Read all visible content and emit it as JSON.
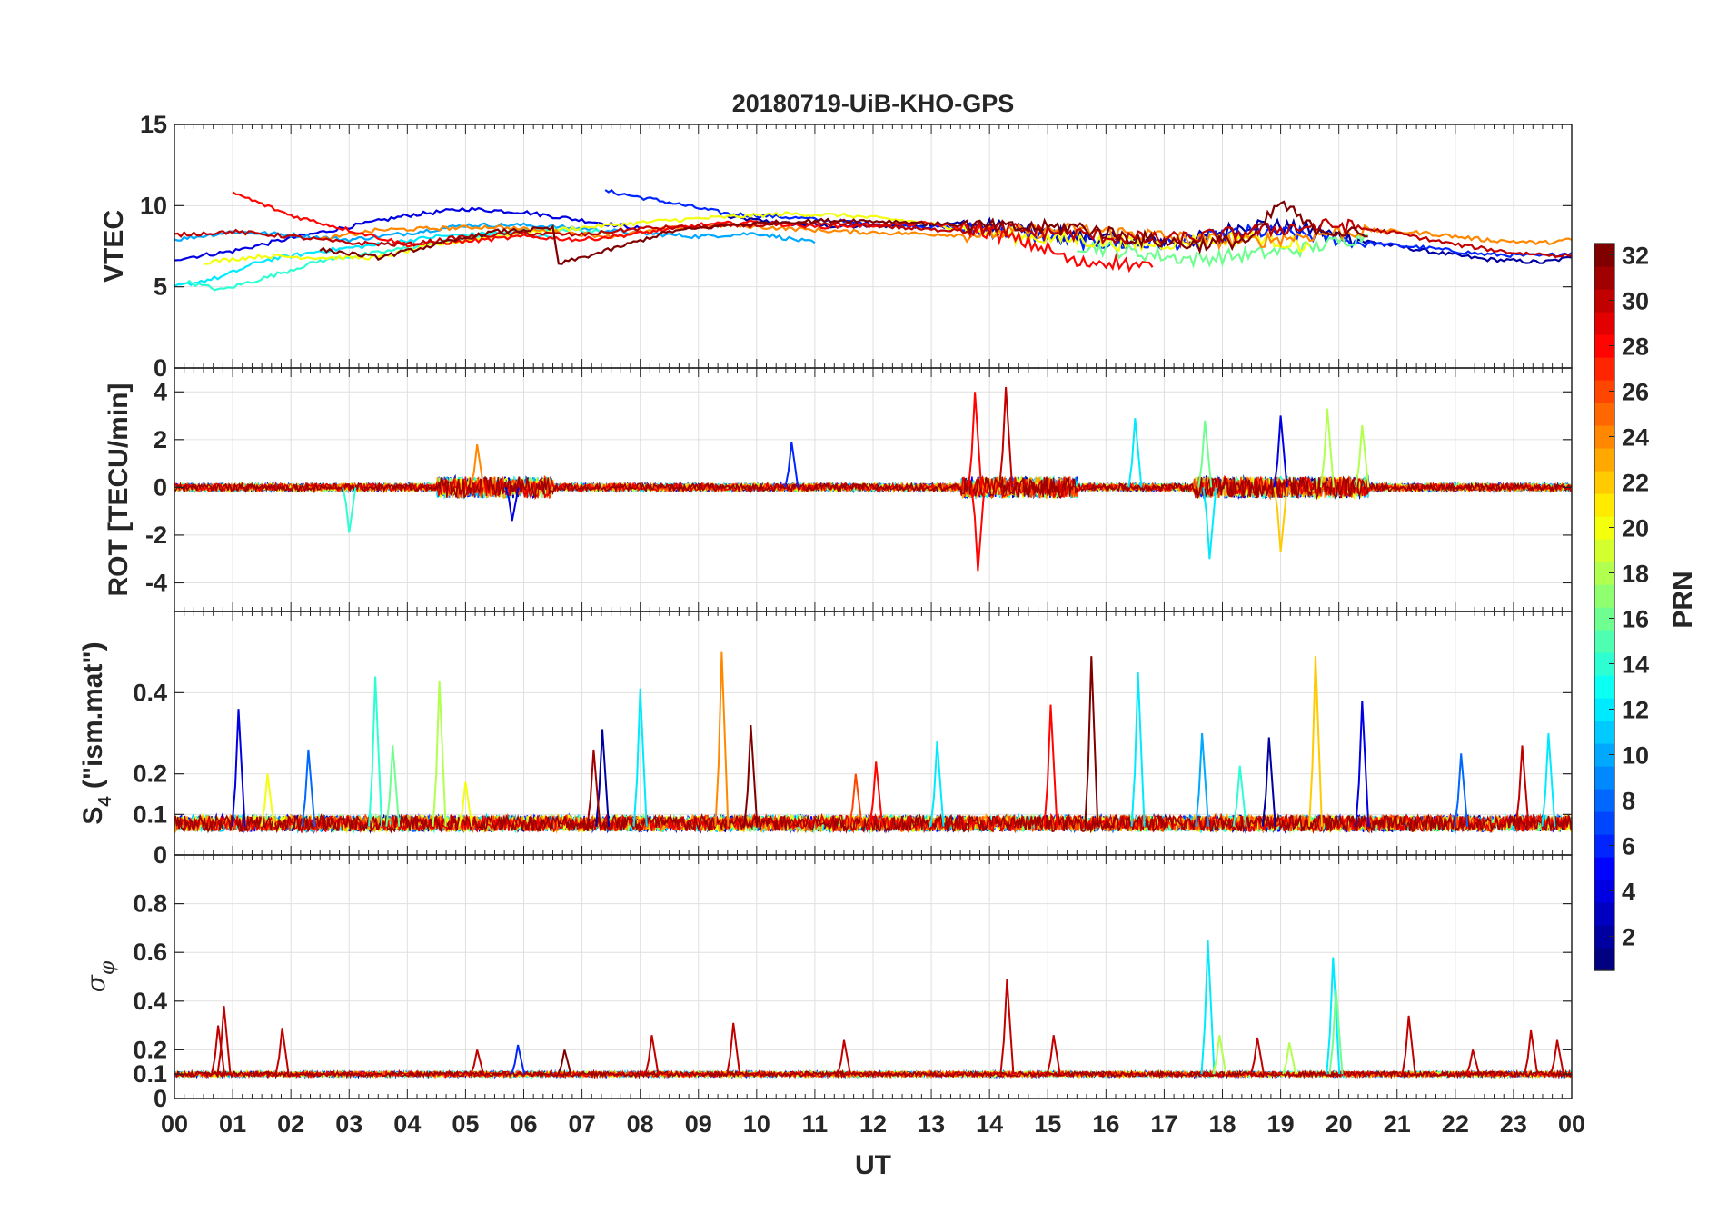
{
  "chart_data": {
    "type": "line",
    "title": "20180719-UiB-KHO-GPS",
    "xlabel": "UT",
    "x_tick_labels": [
      "00",
      "01",
      "02",
      "03",
      "04",
      "05",
      "06",
      "07",
      "08",
      "09",
      "10",
      "11",
      "12",
      "13",
      "14",
      "15",
      "16",
      "17",
      "18",
      "19",
      "20",
      "21",
      "22",
      "23",
      "00"
    ],
    "xlim": [
      0,
      24
    ],
    "colorbar": {
      "label": "PRN",
      "range": [
        1,
        32
      ],
      "tick_labels": [
        "2",
        "4",
        "6",
        "8",
        "10",
        "12",
        "14",
        "16",
        "18",
        "20",
        "22",
        "24",
        "26",
        "28",
        "30",
        "32"
      ],
      "colormap": "jet"
    },
    "panels": [
      {
        "name": "vtec",
        "ylabel": "VTEC",
        "ylim": [
          0,
          15
        ],
        "y_ticks": [
          0,
          5,
          10,
          15
        ],
        "y_tick_labels": [
          "0",
          "5",
          "10",
          "15"
        ],
        "series": [
          {
            "prn": 2,
            "x": [
              9.5,
              10.5,
              11.5,
              12.5,
              13.5,
              14.5,
              15.5,
              16.5,
              17.5,
              18.5,
              19.5,
              20.5,
              21.5,
              22.5,
              23.5,
              24
            ],
            "values": [
              9.3,
              8.9,
              8.7,
              8.8,
              8.9,
              8.6,
              8.1,
              7.8,
              7.9,
              8.9,
              8.5,
              7.8,
              7.2,
              6.7,
              6.5,
              6.8
            ]
          },
          {
            "prn": 4,
            "x": [
              0,
              1,
              2,
              3,
              4,
              5,
              6,
              7,
              8
            ],
            "values": [
              6.7,
              7.2,
              8.0,
              8.7,
              9.4,
              9.8,
              9.6,
              9.1,
              8.6
            ]
          },
          {
            "prn": 6,
            "x": [
              7.4,
              8.5,
              9.5,
              10.5,
              11.5,
              12.5,
              13.5,
              14.5,
              15.5,
              16.5,
              17.5,
              18.5,
              19.5,
              20.5,
              21.5,
              22.5,
              23.5,
              24
            ],
            "values": [
              10.9,
              10.2,
              9.5,
              9.3,
              9.0,
              8.8,
              8.6,
              8.3,
              7.8,
              7.6,
              7.8,
              8.4,
              8.2,
              7.7,
              7.4,
              7.0,
              6.9,
              7.1
            ]
          },
          {
            "prn": 10,
            "x": [
              0,
              1,
              2,
              3,
              4,
              5,
              6,
              7,
              8,
              9,
              10,
              10.5,
              11
            ],
            "values": [
              7.9,
              8.4,
              8.2,
              7.9,
              8.3,
              8.8,
              8.8,
              8.6,
              8.3,
              8.1,
              8.3,
              8.0,
              7.7
            ]
          },
          {
            "prn": 12,
            "x": [
              0,
              0.8,
              1.5,
              2.5,
              3.5,
              4.5,
              5.5,
              6.5
            ],
            "values": [
              5.0,
              5.6,
              6.6,
              7.2,
              7.6,
              8.1,
              8.3,
              8.1
            ]
          },
          {
            "prn": 14,
            "x": [
              0.2,
              0.8,
              1.6,
              2.5,
              3.5,
              4.5,
              5.5,
              6.5,
              7.5
            ],
            "values": [
              5.3,
              4.8,
              5.6,
              6.6,
              7.1,
              7.7,
              8.3,
              8.6,
              8.3
            ]
          },
          {
            "prn": 16,
            "x": [
              15.5,
              16.5,
              17.5,
              18.5,
              19.5,
              20.5
            ],
            "values": [
              7.6,
              7.1,
              6.7,
              7.0,
              7.4,
              8.2
            ]
          },
          {
            "prn": 20,
            "x": [
              0.5,
              1.5,
              2.5,
              3.5,
              4.5,
              5.5,
              6.5,
              7.5,
              8.5,
              9.5,
              10.5,
              11.5,
              12.5,
              13.5,
              14.5,
              15.5,
              16.5,
              17.5,
              18.5,
              19.5
            ],
            "values": [
              6.5,
              6.9,
              6.8,
              6.8,
              7.6,
              8.1,
              8.5,
              8.8,
              9.1,
              9.3,
              9.5,
              9.4,
              9.1,
              8.6,
              8.1,
              7.9,
              7.6,
              7.8,
              8.1,
              7.5
            ]
          },
          {
            "prn": 24,
            "x": [
              2.5,
              3.5,
              4.5,
              5.5,
              6.5,
              7.5,
              8.5,
              9.5,
              10.5,
              11.5,
              12.5,
              13.5,
              14.5,
              15.5,
              16.5,
              17.5,
              18.5,
              19.5,
              20.5,
              21.5,
              22.5,
              23.5,
              24
            ],
            "values": [
              7.9,
              8.5,
              8.6,
              8.7,
              8.4,
              8.1,
              8.6,
              8.8,
              8.6,
              8.4,
              8.3,
              8.2,
              8.4,
              8.5,
              8.3,
              7.9,
              7.8,
              8.2,
              8.5,
              8.3,
              7.9,
              7.7,
              7.9
            ]
          },
          {
            "prn": 28,
            "x": [
              1.0,
              2.0,
              3.0,
              4.0,
              5.0,
              6.0,
              7.0,
              8.0,
              9.0,
              10.0,
              11.0,
              12.0,
              13.0,
              14.0,
              15.0,
              15.5,
              16.0,
              16.8
            ],
            "values": [
              10.8,
              9.4,
              8.5,
              7.6,
              7.8,
              8.1,
              7.9,
              8.3,
              8.8,
              9.0,
              8.7,
              8.8,
              8.9,
              8.4,
              7.3,
              6.4,
              6.6,
              6.2
            ]
          },
          {
            "prn": 30,
            "x": [
              0,
              1,
              2,
              3,
              4,
              5,
              6,
              7,
              8,
              9,
              10,
              11,
              12,
              13,
              14,
              15,
              16,
              17,
              18,
              19,
              20,
              21,
              22,
              23,
              24
            ],
            "values": [
              8.2,
              8.4,
              8.1,
              7.7,
              7.6,
              8.1,
              8.3,
              8.2,
              8.6,
              8.7,
              8.8,
              8.9,
              8.8,
              8.5,
              8.6,
              8.4,
              8.1,
              7.9,
              8.2,
              8.6,
              8.8,
              8.3,
              7.6,
              7.1,
              6.9
            ]
          },
          {
            "prn": 32,
            "x": [
              2.5,
              3.5,
              4.5,
              5.5,
              6.5,
              6.6,
              7.5,
              8.5,
              9.5,
              10.5,
              11.5,
              12.5,
              13.5,
              14.5,
              15.5,
              16.5,
              17.5,
              18.5,
              19.0,
              19.5,
              20.5
            ],
            "values": [
              7.3,
              6.8,
              7.6,
              8.4,
              8.6,
              6.4,
              7.3,
              8.4,
              8.8,
              9.0,
              9.1,
              9.0,
              8.8,
              8.6,
              8.7,
              8.0,
              7.6,
              7.9,
              10.2,
              8.7,
              8.1
            ]
          }
        ]
      },
      {
        "name": "rot",
        "ylabel": "ROT [TECU/min]",
        "ylim": [
          -5.2,
          5
        ],
        "y_ticks": [
          -4,
          -2,
          0,
          2,
          4
        ],
        "y_tick_labels": [
          "-4",
          "-2",
          "0",
          "2",
          "4"
        ],
        "baseline": 0,
        "noise_base": 0.15,
        "noise_active": 0.45,
        "active_intervals": [
          [
            4.5,
            6.5
          ],
          [
            13.5,
            15.5
          ],
          [
            17.5,
            20.5
          ]
        ],
        "spikes": [
          {
            "prn": 28,
            "x": 13.75,
            "value": 4.0
          },
          {
            "prn": 28,
            "x": 13.8,
            "value": -3.5
          },
          {
            "prn": 30,
            "x": 14.28,
            "value": 4.2
          },
          {
            "prn": 16,
            "x": 17.7,
            "value": 2.8
          },
          {
            "prn": 12,
            "x": 17.78,
            "value": -3.0
          },
          {
            "prn": 4,
            "x": 19.0,
            "value": 3.0
          },
          {
            "prn": 22,
            "x": 19.0,
            "value": -2.7
          },
          {
            "prn": 18,
            "x": 19.8,
            "value": 3.3
          },
          {
            "prn": 18,
            "x": 20.4,
            "value": 2.6
          },
          {
            "prn": 14,
            "x": 3.0,
            "value": -1.9
          },
          {
            "prn": 24,
            "x": 5.2,
            "value": 1.8
          },
          {
            "prn": 6,
            "x": 10.6,
            "value": 1.9
          },
          {
            "prn": 12,
            "x": 16.5,
            "value": 2.9
          },
          {
            "prn": 4,
            "x": 5.8,
            "value": -1.4
          }
        ]
      },
      {
        "name": "s4",
        "ylabel_main": "S",
        "ylabel_sub": "4",
        "ylabel_rest": " (\"ism.mat\")",
        "ylim": [
          0,
          0.6
        ],
        "y_ticks": [
          0,
          0.1,
          0.2,
          0.4
        ],
        "y_tick_labels": [
          "0",
          "0.1",
          "0.2",
          "0.4"
        ],
        "baseline": 0.07,
        "noise_base": 0.025,
        "spikes": [
          {
            "prn": 4,
            "x": 1.1,
            "value": 0.36
          },
          {
            "prn": 20,
            "x": 1.6,
            "value": 0.2
          },
          {
            "prn": 8,
            "x": 2.3,
            "value": 0.26
          },
          {
            "prn": 14,
            "x": 3.45,
            "value": 0.44
          },
          {
            "prn": 16,
            "x": 3.75,
            "value": 0.27
          },
          {
            "prn": 18,
            "x": 4.55,
            "value": 0.43
          },
          {
            "prn": 2,
            "x": 7.35,
            "value": 0.31
          },
          {
            "prn": 31,
            "x": 7.2,
            "value": 0.26
          },
          {
            "prn": 12,
            "x": 8.0,
            "value": 0.41
          },
          {
            "prn": 24,
            "x": 9.4,
            "value": 0.5
          },
          {
            "prn": 32,
            "x": 9.9,
            "value": 0.32
          },
          {
            "prn": 28,
            "x": 12.05,
            "value": 0.23
          },
          {
            "prn": 12,
            "x": 13.1,
            "value": 0.28
          },
          {
            "prn": 28,
            "x": 15.05,
            "value": 0.37
          },
          {
            "prn": 32,
            "x": 15.75,
            "value": 0.49
          },
          {
            "prn": 12,
            "x": 16.55,
            "value": 0.45
          },
          {
            "prn": 10,
            "x": 17.65,
            "value": 0.3
          },
          {
            "prn": 2,
            "x": 18.8,
            "value": 0.29
          },
          {
            "prn": 22,
            "x": 19.6,
            "value": 0.49
          },
          {
            "prn": 4,
            "x": 20.4,
            "value": 0.38
          },
          {
            "prn": 8,
            "x": 22.1,
            "value": 0.25
          },
          {
            "prn": 30,
            "x": 23.15,
            "value": 0.27
          },
          {
            "prn": 12,
            "x": 23.6,
            "value": 0.3
          },
          {
            "prn": 20,
            "x": 5.0,
            "value": 0.18
          },
          {
            "prn": 26,
            "x": 11.7,
            "value": 0.2
          },
          {
            "prn": 14,
            "x": 18.3,
            "value": 0.22
          }
        ]
      },
      {
        "name": "sigma-phi",
        "ylabel_main": "σ",
        "ylabel_sub": "φ",
        "ylim": [
          0,
          1
        ],
        "y_ticks": [
          0,
          0.1,
          0.2,
          0.4,
          0.6,
          0.8
        ],
        "y_tick_labels": [
          "0",
          "0.1",
          "0.2",
          "0.4",
          "0.6",
          "0.8"
        ],
        "baseline": 0.1,
        "noise_base": 0.01,
        "spikes": [
          {
            "prn": 30,
            "x": 0.75,
            "value": 0.3
          },
          {
            "prn": 30,
            "x": 0.85,
            "value": 0.38
          },
          {
            "prn": 30,
            "x": 1.85,
            "value": 0.29
          },
          {
            "prn": 30,
            "x": 5.2,
            "value": 0.2
          },
          {
            "prn": 6,
            "x": 5.9,
            "value": 0.22
          },
          {
            "prn": 32,
            "x": 6.7,
            "value": 0.2
          },
          {
            "prn": 30,
            "x": 8.2,
            "value": 0.26
          },
          {
            "prn": 30,
            "x": 9.6,
            "value": 0.31
          },
          {
            "prn": 30,
            "x": 11.5,
            "value": 0.24
          },
          {
            "prn": 30,
            "x": 14.3,
            "value": 0.49
          },
          {
            "prn": 30,
            "x": 15.1,
            "value": 0.26
          },
          {
            "prn": 12,
            "x": 17.75,
            "value": 0.65
          },
          {
            "prn": 18,
            "x": 17.95,
            "value": 0.26
          },
          {
            "prn": 30,
            "x": 18.6,
            "value": 0.25
          },
          {
            "prn": 18,
            "x": 19.15,
            "value": 0.23
          },
          {
            "prn": 12,
            "x": 19.9,
            "value": 0.58
          },
          {
            "prn": 16,
            "x": 19.95,
            "value": 0.45
          },
          {
            "prn": 30,
            "x": 21.2,
            "value": 0.34
          },
          {
            "prn": 30,
            "x": 22.3,
            "value": 0.2
          },
          {
            "prn": 30,
            "x": 23.3,
            "value": 0.28
          },
          {
            "prn": 30,
            "x": 23.75,
            "value": 0.24
          }
        ]
      }
    ]
  }
}
